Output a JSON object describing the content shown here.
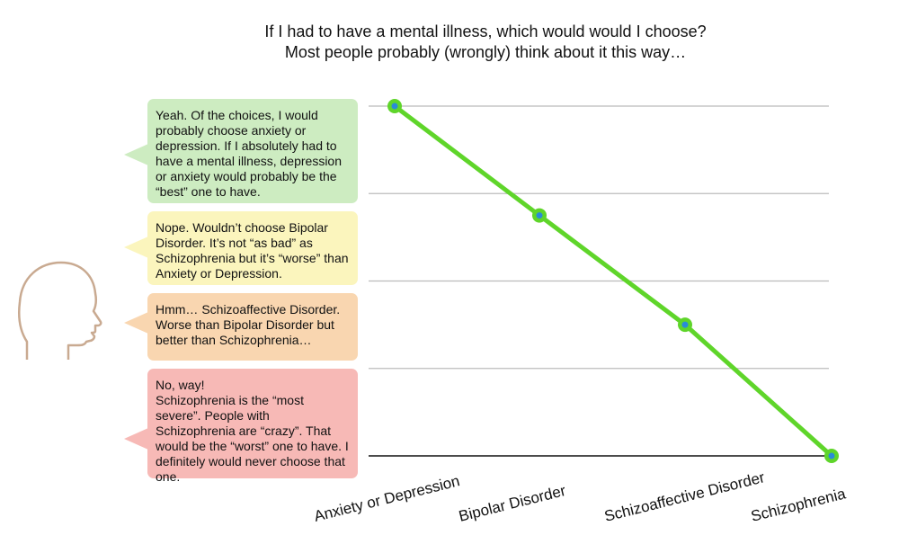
{
  "title": {
    "line1": "If I had to have a mental illness, which would would I choose?",
    "line2": "Most people probably (wrongly) think about it this way…"
  },
  "bubbles": [
    {
      "text": "Yeah.  Of the choices, I would probably choose anxiety or depression.  If I absolutely had to have a mental illness, depression or anxiety would probably be the “best” one to have.",
      "color": "#cdecc1"
    },
    {
      "text": "Nope.  Wouldn’t choose Bipolar Disorder.  It’s not “as bad” as Schizophrenia but it’s “worse” than Anxiety or Depression.",
      "color": "#fbf5bd"
    },
    {
      "text": "Hmm…  Schizoaffective Disorder.  Worse than Bipolar Disorder but better than Schizophrenia…",
      "color": "#f9d6b0"
    },
    {
      "text": "No, way!\nSchizophrenia is the “most severe”.  People with Schizophrenia are “crazy”.  That would be the “worst” one to have.  I definitely would never choose that one.",
      "color": "#f7b9b6"
    }
  ],
  "icons": {
    "head": "person-head-profile-icon"
  },
  "chart_data": {
    "type": "line",
    "title": "",
    "xlabel": "",
    "ylabel": "",
    "categories": [
      "Anxiety or Depression",
      "Bipolar Disorder",
      "Schizoaffective Disorder",
      "Schizophrenia"
    ],
    "series": [
      {
        "values": [
          4,
          2.75,
          1.5,
          0
        ],
        "color": "#5fd52a",
        "marker_color": "#2a8bd8"
      }
    ],
    "ylim": [
      0,
      4
    ],
    "yticks_shown": false,
    "grid": true,
    "grid_color": "#bbbbbb",
    "axis_color": "#111111"
  }
}
